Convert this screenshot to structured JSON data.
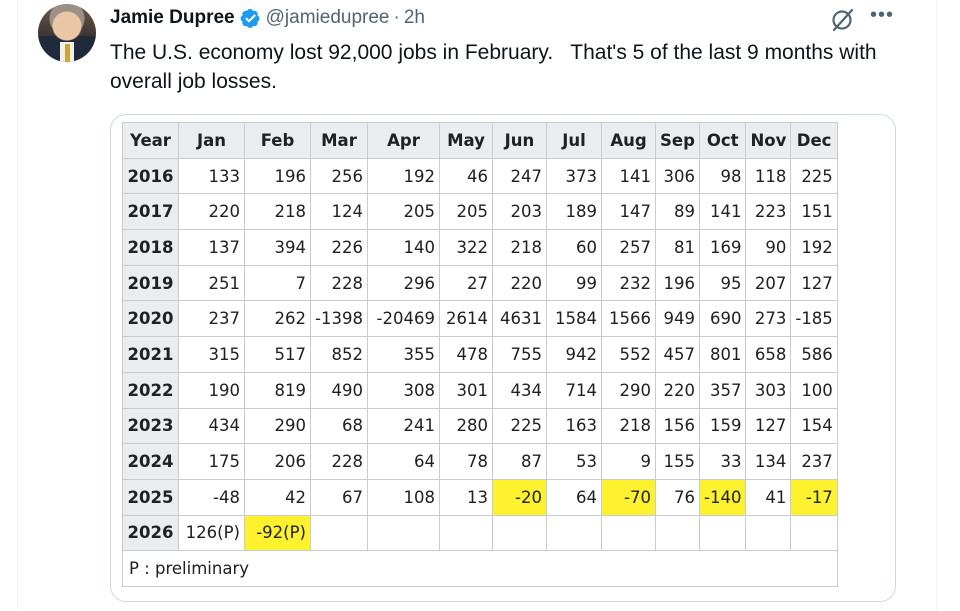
{
  "tweet": {
    "author_name": "Jamie Dupree",
    "handle": "@jamiedupree",
    "separator": "·",
    "time": "2h",
    "text": "The U.S. economy lost 92,000 jobs in February.   That's 5 of the last 9 months with overall job losses.",
    "verified_color": "#1d9bf0",
    "icons": {
      "verified": "verified-badge-icon",
      "grok": "grok-icon",
      "more": "more-icon"
    }
  },
  "table": {
    "headers": [
      "Year",
      "Jan",
      "Feb",
      "Mar",
      "Apr",
      "May",
      "Jun",
      "Jul",
      "Aug",
      "Sep",
      "Oct",
      "Nov",
      "Dec"
    ],
    "highlight_color": "#fdf22d",
    "rows": [
      {
        "year": "2016",
        "cells": [
          "133",
          "196",
          "256",
          "192",
          "46",
          "247",
          "373",
          "141",
          "306",
          "98",
          "118",
          "225"
        ],
        "highlights": []
      },
      {
        "year": "2017",
        "cells": [
          "220",
          "218",
          "124",
          "205",
          "205",
          "203",
          "189",
          "147",
          "89",
          "141",
          "223",
          "151"
        ],
        "highlights": []
      },
      {
        "year": "2018",
        "cells": [
          "137",
          "394",
          "226",
          "140",
          "322",
          "218",
          "60",
          "257",
          "81",
          "169",
          "90",
          "192"
        ],
        "highlights": []
      },
      {
        "year": "2019",
        "cells": [
          "251",
          "7",
          "228",
          "296",
          "27",
          "220",
          "99",
          "232",
          "196",
          "95",
          "207",
          "127"
        ],
        "highlights": []
      },
      {
        "year": "2020",
        "cells": [
          "237",
          "262",
          "-1398",
          "-20469",
          "2614",
          "4631",
          "1584",
          "1566",
          "949",
          "690",
          "273",
          "-185"
        ],
        "highlights": []
      },
      {
        "year": "2021",
        "cells": [
          "315",
          "517",
          "852",
          "355",
          "478",
          "755",
          "942",
          "552",
          "457",
          "801",
          "658",
          "586"
        ],
        "highlights": []
      },
      {
        "year": "2022",
        "cells": [
          "190",
          "819",
          "490",
          "308",
          "301",
          "434",
          "714",
          "290",
          "220",
          "357",
          "303",
          "100"
        ],
        "highlights": []
      },
      {
        "year": "2023",
        "cells": [
          "434",
          "290",
          "68",
          "241",
          "280",
          "225",
          "163",
          "218",
          "156",
          "159",
          "127",
          "154"
        ],
        "highlights": []
      },
      {
        "year": "2024",
        "cells": [
          "175",
          "206",
          "228",
          "64",
          "78",
          "87",
          "53",
          "9",
          "155",
          "33",
          "134",
          "237"
        ],
        "highlights": []
      },
      {
        "year": "2025",
        "cells": [
          "-48",
          "42",
          "67",
          "108",
          "13",
          "-20",
          "64",
          "-70",
          "76",
          "-140",
          "41",
          "-17"
        ],
        "highlights": [
          5,
          7,
          9,
          11
        ]
      },
      {
        "year": "2026",
        "cells": [
          "126(P)",
          "-92(P)",
          "",
          "",
          "",
          "",
          "",
          "",
          "",
          "",
          "",
          ""
        ],
        "highlights": [
          1
        ]
      }
    ],
    "note": "P : preliminary"
  }
}
